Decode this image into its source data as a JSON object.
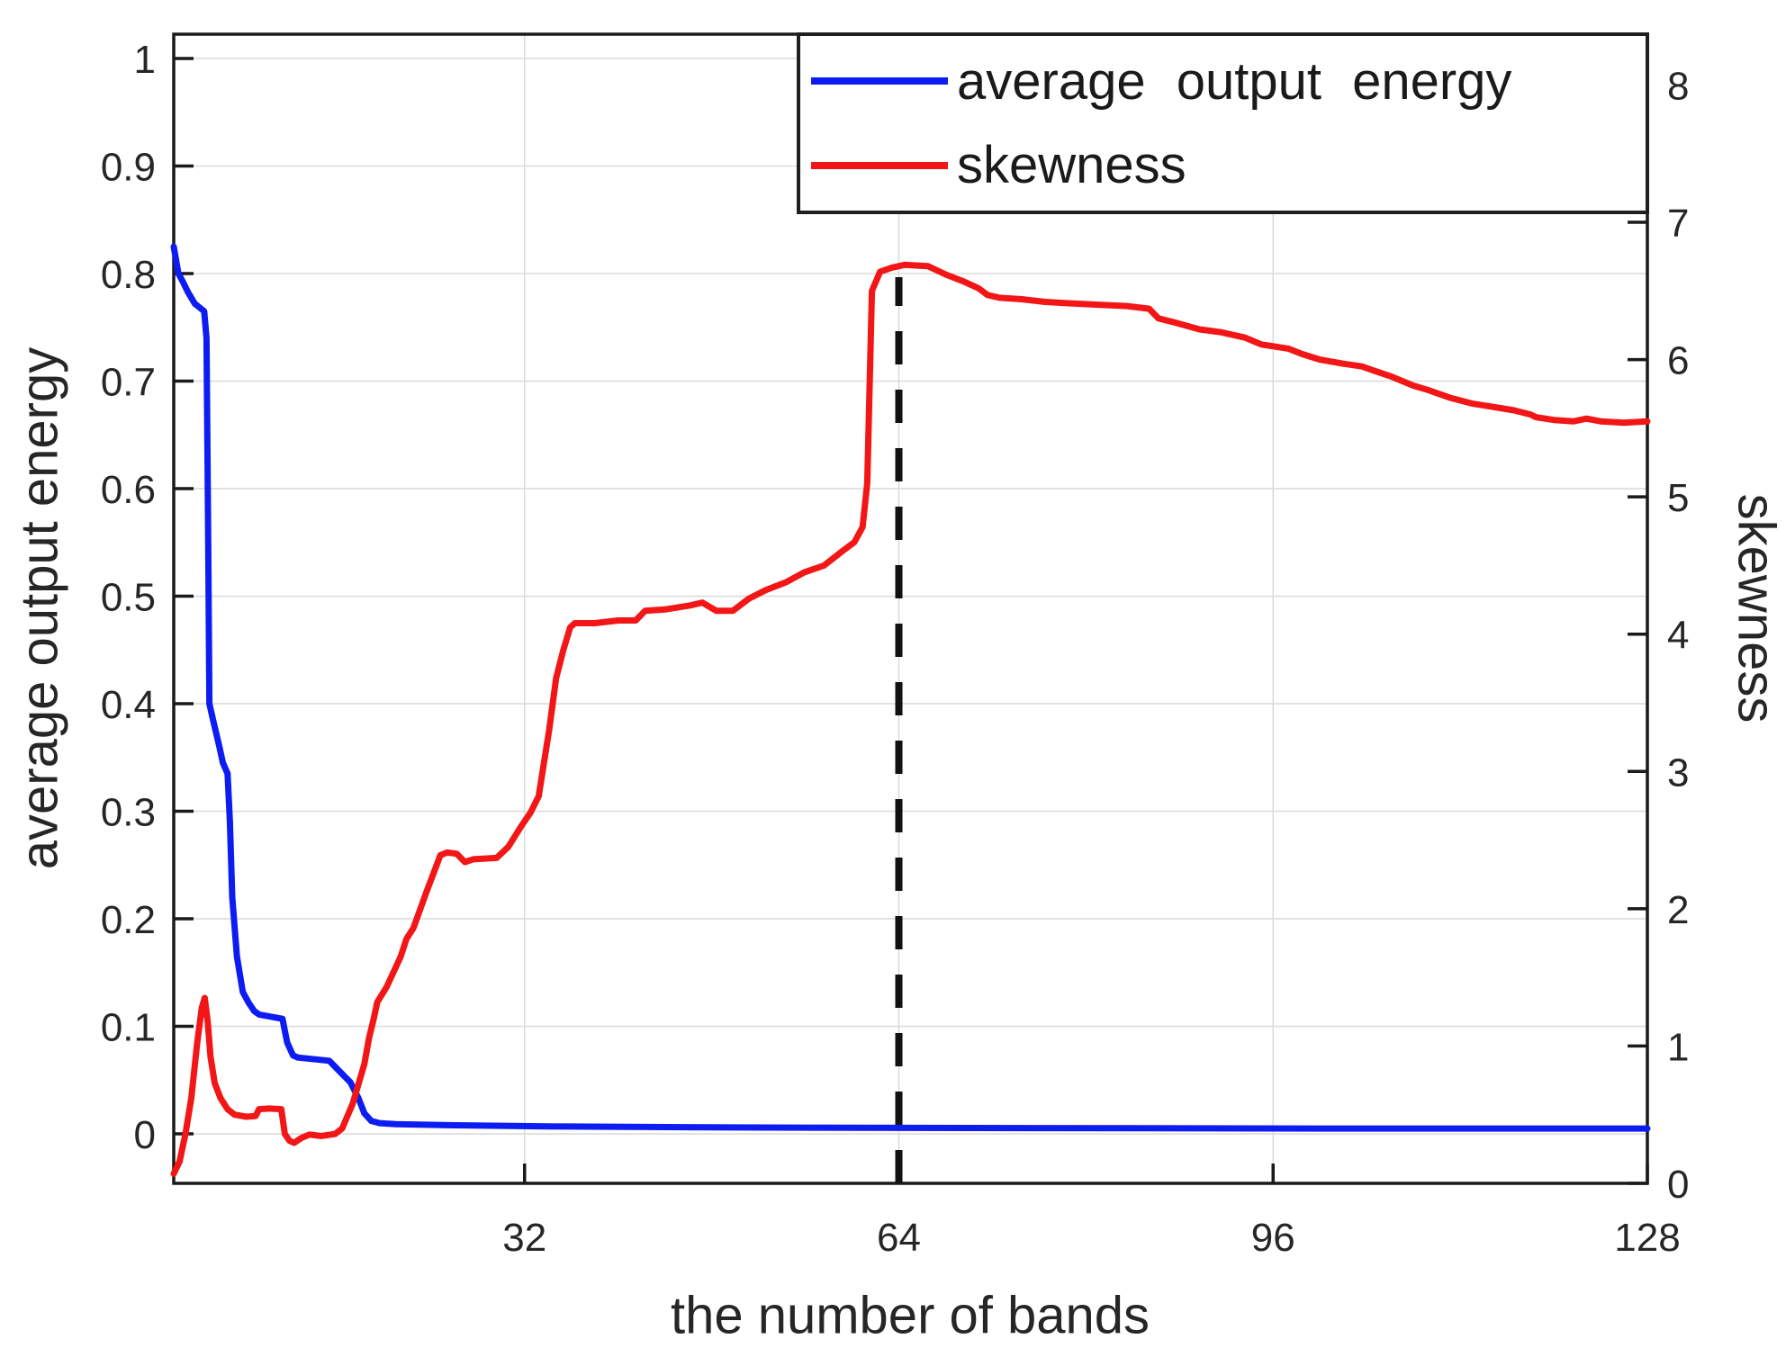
{
  "chart_data": {
    "type": "line",
    "title": "",
    "xlabel": "the number of bands",
    "ylabel_left": "average output energy",
    "ylabel_right": "skewness",
    "grid": true,
    "x_range": [
      2,
      128
    ],
    "x_ticks": [
      32,
      64,
      96,
      128
    ],
    "x_tick_labels": [
      "32",
      "64",
      "96",
      "128"
    ],
    "y_left_range": [
      -0.046,
      1.0226
    ],
    "y_left_ticks": [
      0,
      0.1,
      0.2,
      0.3,
      0.4,
      0.5,
      0.6,
      0.7,
      0.8,
      0.9,
      1
    ],
    "y_left_tick_labels": [
      "0",
      "0.1",
      "0.2",
      "0.3",
      "0.4",
      "0.5",
      "0.6",
      "0.7",
      "0.8",
      "0.9",
      "1"
    ],
    "y_right_range": [
      0,
      8.37
    ],
    "y_right_ticks": [
      0,
      1,
      2,
      3,
      4,
      5,
      6,
      7,
      8
    ],
    "y_right_tick_labels": [
      "0",
      "1",
      "2",
      "3",
      "4",
      "5",
      "6",
      "7",
      "8"
    ],
    "colors": {
      "blue_series": "#0d1df2",
      "red_series": "#f21616",
      "grid": "#dcdcdc",
      "frame": "#1a1a1a",
      "tick_text": "#262626",
      "dashed_line": "#111111"
    },
    "legend": {
      "position": "top-right",
      "entries": [
        {
          "label": "average output energy",
          "color": "#0d1df2"
        },
        {
          "label": "skewness",
          "color": "#f21616"
        }
      ]
    },
    "annotation": {
      "type": "vline-dashed",
      "x": 64,
      "y_right_top": 6.6,
      "color": "#111111"
    },
    "series": [
      {
        "name": "average output energy",
        "axis": "left",
        "color": "#0d1df2",
        "points": [
          [
            2,
            0.825
          ],
          [
            2.4,
            0.8
          ],
          [
            2.8,
            0.792
          ],
          [
            3.2,
            0.783
          ],
          [
            3.8,
            0.772
          ],
          [
            4.6,
            0.765
          ],
          [
            4.8,
            0.74
          ],
          [
            4.95,
            0.55
          ],
          [
            5.05,
            0.4
          ],
          [
            5.4,
            0.383
          ],
          [
            5.9,
            0.36
          ],
          [
            6.2,
            0.345
          ],
          [
            6.6,
            0.335
          ],
          [
            6.8,
            0.29
          ],
          [
            7.0,
            0.22
          ],
          [
            7.4,
            0.165
          ],
          [
            7.9,
            0.132
          ],
          [
            8.4,
            0.122
          ],
          [
            8.9,
            0.114
          ],
          [
            9.3,
            0.111
          ],
          [
            11.3,
            0.107
          ],
          [
            11.7,
            0.085
          ],
          [
            12.2,
            0.073
          ],
          [
            12.6,
            0.071
          ],
          [
            15.3,
            0.068
          ],
          [
            16.1,
            0.059
          ],
          [
            17.1,
            0.048
          ],
          [
            17.8,
            0.033
          ],
          [
            18.3,
            0.019
          ],
          [
            18.9,
            0.012
          ],
          [
            19.6,
            0.01
          ],
          [
            21,
            0.009
          ],
          [
            26,
            0.008
          ],
          [
            34,
            0.007
          ],
          [
            50,
            0.006
          ],
          [
            70,
            0.0055
          ],
          [
            100,
            0.005
          ],
          [
            128,
            0.005
          ]
        ]
      },
      {
        "name": "skewness",
        "axis": "right",
        "color": "#f21616",
        "points": [
          [
            2,
            0.07
          ],
          [
            2.5,
            0.16
          ],
          [
            3,
            0.36
          ],
          [
            3.5,
            0.62
          ],
          [
            4,
            1.02
          ],
          [
            4.4,
            1.28
          ],
          [
            4.65,
            1.35
          ],
          [
            4.9,
            1.18
          ],
          [
            5.15,
            0.92
          ],
          [
            5.5,
            0.73
          ],
          [
            6,
            0.62
          ],
          [
            6.6,
            0.54
          ],
          [
            7.2,
            0.5
          ],
          [
            8.2,
            0.485
          ],
          [
            9,
            0.49
          ],
          [
            9.3,
            0.54
          ],
          [
            10.2,
            0.545
          ],
          [
            11.2,
            0.54
          ],
          [
            11.5,
            0.36
          ],
          [
            11.9,
            0.31
          ],
          [
            12.3,
            0.295
          ],
          [
            12.9,
            0.33
          ],
          [
            13.6,
            0.355
          ],
          [
            14.6,
            0.345
          ],
          [
            15.8,
            0.36
          ],
          [
            16.4,
            0.4
          ],
          [
            17.3,
            0.58
          ],
          [
            18.3,
            0.87
          ],
          [
            18.7,
            1.06
          ],
          [
            19.1,
            1.2
          ],
          [
            19.4,
            1.32
          ],
          [
            20.2,
            1.43
          ],
          [
            21.4,
            1.65
          ],
          [
            21.9,
            1.78
          ],
          [
            22.5,
            1.86
          ],
          [
            23.6,
            2.12
          ],
          [
            24.8,
            2.39
          ],
          [
            25.4,
            2.41
          ],
          [
            26.2,
            2.4
          ],
          [
            26.9,
            2.34
          ],
          [
            27.6,
            2.36
          ],
          [
            29.6,
            2.37
          ],
          [
            30.6,
            2.45
          ],
          [
            31.7,
            2.6
          ],
          [
            32.5,
            2.7
          ],
          [
            33.2,
            2.82
          ],
          [
            34.1,
            3.3
          ],
          [
            34.7,
            3.68
          ],
          [
            35.3,
            3.88
          ],
          [
            35.9,
            4.05
          ],
          [
            36.3,
            4.08
          ],
          [
            38,
            4.08
          ],
          [
            40,
            4.1
          ],
          [
            41.5,
            4.1
          ],
          [
            42.3,
            4.17
          ],
          [
            44,
            4.18
          ],
          [
            46.2,
            4.21
          ],
          [
            47.2,
            4.23
          ],
          [
            48.4,
            4.17
          ],
          [
            49.8,
            4.17
          ],
          [
            51.2,
            4.26
          ],
          [
            52.6,
            4.32
          ],
          [
            54.4,
            4.38
          ],
          [
            55.9,
            4.45
          ],
          [
            57.6,
            4.5
          ],
          [
            59.1,
            4.6
          ],
          [
            60.2,
            4.67
          ],
          [
            60.9,
            4.78
          ],
          [
            61.3,
            5.1
          ],
          [
            61.7,
            6.5
          ],
          [
            62.4,
            6.64
          ],
          [
            63.4,
            6.67
          ],
          [
            64.5,
            6.69
          ],
          [
            66.5,
            6.68
          ],
          [
            68,
            6.62
          ],
          [
            69.5,
            6.57
          ],
          [
            70.8,
            6.52
          ],
          [
            71.6,
            6.47
          ],
          [
            72.6,
            6.45
          ],
          [
            74.5,
            6.44
          ],
          [
            76.5,
            6.42
          ],
          [
            78.5,
            6.41
          ],
          [
            81,
            6.4
          ],
          [
            83.5,
            6.39
          ],
          [
            85.4,
            6.37
          ],
          [
            86.2,
            6.3
          ],
          [
            87.6,
            6.27
          ],
          [
            89.7,
            6.22
          ],
          [
            91.5,
            6.2
          ],
          [
            93.6,
            6.16
          ],
          [
            95,
            6.11
          ],
          [
            97.3,
            6.08
          ],
          [
            98.5,
            6.04
          ],
          [
            100,
            6.0
          ],
          [
            102,
            5.97
          ],
          [
            103.6,
            5.95
          ],
          [
            104.6,
            5.92
          ],
          [
            106,
            5.88
          ],
          [
            108,
            5.81
          ],
          [
            109.2,
            5.78
          ],
          [
            111.2,
            5.72
          ],
          [
            113,
            5.68
          ],
          [
            115.2,
            5.65
          ],
          [
            116.6,
            5.63
          ],
          [
            118,
            5.6
          ],
          [
            118.5,
            5.58
          ],
          [
            120,
            5.56
          ],
          [
            121.7,
            5.55
          ],
          [
            122.8,
            5.57
          ],
          [
            124,
            5.55
          ],
          [
            126,
            5.54
          ],
          [
            128,
            5.55
          ]
        ]
      }
    ]
  }
}
